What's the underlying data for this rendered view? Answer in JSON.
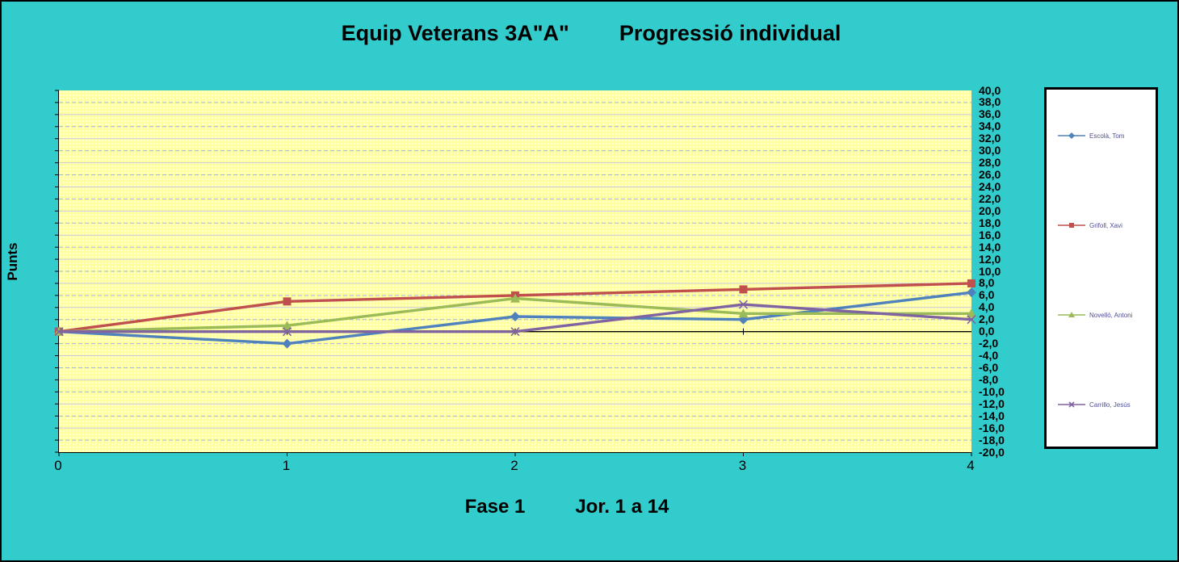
{
  "header": {
    "title_left": "Equip Veterans 3A\"A\"",
    "title_right": "Progressió individual"
  },
  "axes": {
    "y_title": "Punts",
    "x_title_left": "Fase 1",
    "x_title_right": "Jor. 1 a 14"
  },
  "colors": {
    "background": "#33CCCC",
    "plot_background": "#FFFF99",
    "grid_dashed": "#9FB6D9",
    "grid_solid": "#C9C9DD",
    "axis_line": "#000000",
    "legend_background": "#FFFFFF",
    "legend_text": "#4E4E96"
  },
  "chart_data": {
    "type": "line",
    "title": "Equip Veterans 3A\"A\"      Progressió individual",
    "xlabel": "Fase 1      Jor. 1 a 14",
    "ylabel": "Punts",
    "x": [
      0,
      1,
      2,
      3,
      4
    ],
    "xtick_labels": [
      "0",
      "1",
      "2",
      "3",
      "4"
    ],
    "ylim": [
      -20,
      40
    ],
    "ytick_step": 2,
    "ytick_labels": [
      "40,0",
      "38,0",
      "36,0",
      "34,0",
      "32,0",
      "30,0",
      "28,0",
      "26,0",
      "24,0",
      "22,0",
      "20,0",
      "18,0",
      "16,0",
      "14,0",
      "12,0",
      "10,0",
      "8,0",
      "6,0",
      "4,0",
      "2,0",
      "0,0",
      "-2,0",
      "-4,0",
      "-6,0",
      "-8,0",
      "-10,0",
      "-12,0",
      "-14,0",
      "-16,0",
      "-18,0",
      "-20,0"
    ],
    "grid": true,
    "legend_position": "right",
    "series": [
      {
        "name": "Escolà, Tom",
        "color": "#4F81BD",
        "marker": "diamond",
        "values": [
          0,
          -2,
          2.5,
          2,
          6.5
        ]
      },
      {
        "name": "Grifoll, Xavi",
        "color": "#C0504D",
        "marker": "square",
        "values": [
          0,
          5,
          6,
          7,
          8
        ]
      },
      {
        "name": "Novelló, Antoni",
        "color": "#9BBB59",
        "marker": "triangle",
        "values": [
          0,
          1,
          5.5,
          3,
          3
        ]
      },
      {
        "name": "Carrillo, Jesús",
        "color": "#8064A2",
        "marker": "x",
        "values": [
          0,
          0,
          0,
          4.5,
          2
        ]
      }
    ]
  }
}
